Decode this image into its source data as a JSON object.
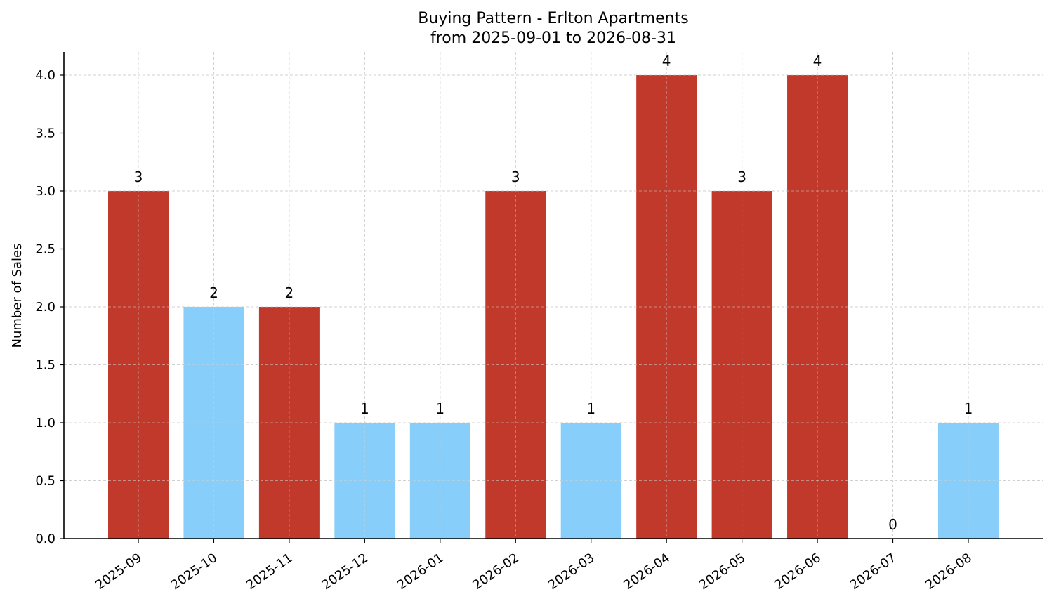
{
  "chart_data": {
    "type": "bar",
    "title": "Buying Pattern - Erlton Apartments",
    "subtitle": "from 2025-09-01 to 2026-08-31",
    "xlabel": "",
    "ylabel": "Number of Sales",
    "ylim": [
      0,
      4.2
    ],
    "yticks": [
      "0.0",
      "0.5",
      "1.0",
      "1.5",
      "2.0",
      "2.5",
      "3.0",
      "3.5",
      "4.0"
    ],
    "grid": true,
    "categories": [
      "2025-09",
      "2025-10",
      "2025-11",
      "2025-12",
      "2026-01",
      "2026-02",
      "2026-03",
      "2026-04",
      "2026-05",
      "2026-06",
      "2026-07",
      "2026-08"
    ],
    "values": [
      3,
      2,
      2,
      1,
      1,
      3,
      1,
      4,
      3,
      4,
      0,
      1
    ],
    "data_labels": [
      "3",
      "2",
      "2",
      "1",
      "1",
      "3",
      "1",
      "4",
      "3",
      "4",
      "0",
      "1"
    ],
    "bar_colors": [
      "#c0392b",
      "#87cefa",
      "#c0392b",
      "#87cefa",
      "#87cefa",
      "#c0392b",
      "#87cefa",
      "#c0392b",
      "#c0392b",
      "#c0392b",
      "#87cefa",
      "#87cefa"
    ]
  }
}
